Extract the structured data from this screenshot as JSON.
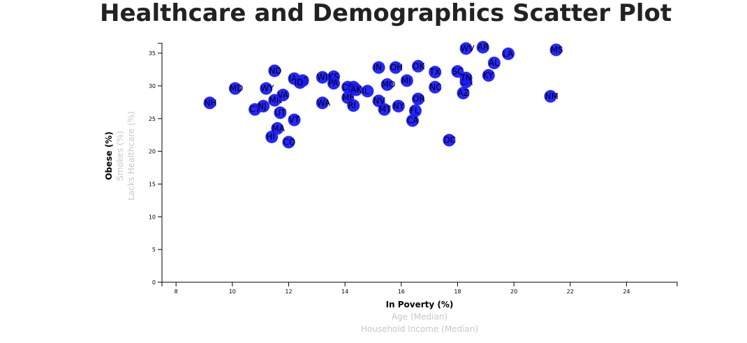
{
  "title": "Healthcare and Demographics Scatter Plot",
  "colors": {
    "dot": "#1a1aff",
    "active_label": "#000000",
    "inactive_label": "#c8c8c8"
  },
  "chart_data": {
    "type": "scatter",
    "title": "Healthcare and Demographics Scatter Plot",
    "x_axis": {
      "range": [
        7.5,
        25.8
      ],
      "ticks": [
        8,
        10,
        12,
        14,
        16,
        18,
        20,
        22,
        24
      ],
      "labels": [
        {
          "text": "In Poverty (%)",
          "active": true
        },
        {
          "text": "Age (Median)",
          "active": false
        },
        {
          "text": "Household Income (Median)",
          "active": false
        }
      ]
    },
    "y_axis": {
      "range": [
        0,
        36.5
      ],
      "ticks": [
        0,
        5,
        10,
        15,
        20,
        25,
        30,
        35
      ],
      "labels": [
        {
          "text": "Obese (%)",
          "active": true
        },
        {
          "text": "Smokes (%)",
          "active": false
        },
        {
          "text": "Lacks Healthcare (%)",
          "active": false
        }
      ]
    },
    "points": [
      {
        "label": "NH",
        "x": 9.2,
        "y": 27.4
      },
      {
        "label": "MD",
        "x": 10.1,
        "y": 29.6
      },
      {
        "label": "CT",
        "x": 10.8,
        "y": 26.4
      },
      {
        "label": "NJ",
        "x": 11.1,
        "y": 26.9
      },
      {
        "label": "WY",
        "x": 11.2,
        "y": 29.6
      },
      {
        "label": "HI",
        "x": 11.4,
        "y": 22.2
      },
      {
        "label": "MN",
        "x": 11.5,
        "y": 27.8
      },
      {
        "label": "ND",
        "x": 11.5,
        "y": 32.3
      },
      {
        "label": "MA",
        "x": 11.6,
        "y": 23.5
      },
      {
        "label": "UT",
        "x": 11.7,
        "y": 25.9
      },
      {
        "label": "VA",
        "x": 11.8,
        "y": 28.6
      },
      {
        "label": "CO",
        "x": 12.0,
        "y": 21.4
      },
      {
        "label": "VT",
        "x": 12.2,
        "y": 24.8
      },
      {
        "label": "IA",
        "x": 12.2,
        "y": 31.1
      },
      {
        "label": "NE",
        "x": 12.5,
        "y": 30.8
      },
      {
        "label": "ID",
        "x": 12.4,
        "y": 30.5
      },
      {
        "label": "WA",
        "x": 13.2,
        "y": 27.4
      },
      {
        "label": "WI",
        "x": 13.2,
        "y": 31.3
      },
      {
        "label": "KS",
        "x": 13.6,
        "y": 31.4
      },
      {
        "label": "PA",
        "x": 13.6,
        "y": 30.4
      },
      {
        "label": "ME",
        "x": 14.1,
        "y": 28.2
      },
      {
        "label": "DE",
        "x": 14.1,
        "y": 29.8
      },
      {
        "label": "RI",
        "x": 14.3,
        "y": 27.0
      },
      {
        "label": "SD",
        "x": 14.3,
        "y": 29.8
      },
      {
        "label": "AK",
        "x": 14.4,
        "y": 29.4
      },
      {
        "label": "IL",
        "x": 14.8,
        "y": 29.2
      },
      {
        "label": "IN",
        "x": 15.2,
        "y": 32.8
      },
      {
        "label": "NV",
        "x": 15.2,
        "y": 27.7
      },
      {
        "label": "MT",
        "x": 15.4,
        "y": 26.4
      },
      {
        "label": "MO",
        "x": 15.5,
        "y": 30.2
      },
      {
        "label": "OH",
        "x": 15.8,
        "y": 32.8
      },
      {
        "label": "NY",
        "x": 15.9,
        "y": 26.9
      },
      {
        "label": "MI",
        "x": 16.2,
        "y": 30.8
      },
      {
        "label": "CA",
        "x": 16.4,
        "y": 24.7
      },
      {
        "label": "FL",
        "x": 16.5,
        "y": 26.2
      },
      {
        "label": "OR",
        "x": 16.6,
        "y": 28.0
      },
      {
        "label": "OK",
        "x": 16.6,
        "y": 33.0
      },
      {
        "label": "NC",
        "x": 17.2,
        "y": 29.8
      },
      {
        "label": "TX",
        "x": 17.2,
        "y": 32.1
      },
      {
        "label": "DC",
        "x": 17.7,
        "y": 21.7
      },
      {
        "label": "SC",
        "x": 18.0,
        "y": 32.2
      },
      {
        "label": "AZ",
        "x": 18.2,
        "y": 28.9
      },
      {
        "label": "GA",
        "x": 18.3,
        "y": 30.6
      },
      {
        "label": "TN",
        "x": 18.3,
        "y": 31.2
      },
      {
        "label": "WV",
        "x": 18.3,
        "y": 35.7
      },
      {
        "label": "AR",
        "x": 18.9,
        "y": 35.9
      },
      {
        "label": "KY",
        "x": 19.1,
        "y": 31.6
      },
      {
        "label": "AL",
        "x": 19.3,
        "y": 33.5
      },
      {
        "label": "LA",
        "x": 19.8,
        "y": 34.9
      },
      {
        "label": "NM",
        "x": 21.3,
        "y": 28.4
      },
      {
        "label": "MS",
        "x": 21.5,
        "y": 35.5
      }
    ]
  }
}
